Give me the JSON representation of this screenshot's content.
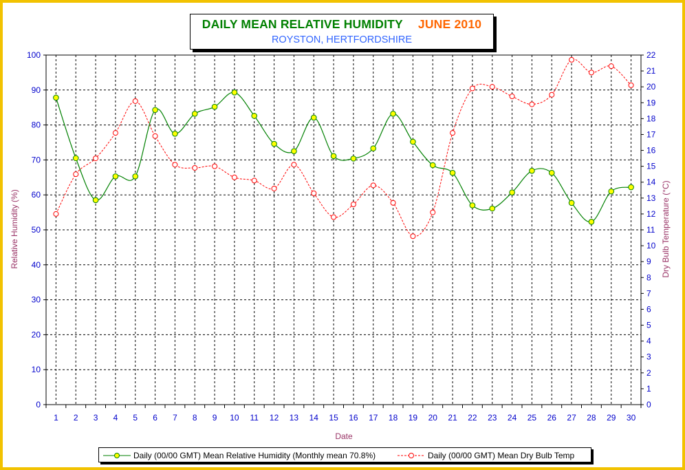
{
  "title": {
    "main": "DAILY MEAN RELATIVE HUMIDITY",
    "period": "JUNE 2010",
    "subtitle": "ROYSTON, HERTFORDSHIRE"
  },
  "colors": {
    "frame": "#f2c200",
    "title_main": "#008000",
    "title_period": "#ff6600",
    "subtitle": "#3366ff",
    "axis_text": "#0000cc",
    "axis_title": "#993366",
    "humidity_line": "#008000",
    "humidity_marker": "#ffff00",
    "temp_line": "#ff0000"
  },
  "chart_data": {
    "type": "line",
    "xlabel": "Date",
    "ylabel": "Relative Humidity (%)",
    "y2label": "Dry Bulb Temperature (°C)",
    "x": [
      1,
      2,
      3,
      4,
      5,
      6,
      7,
      8,
      9,
      10,
      11,
      12,
      13,
      14,
      15,
      16,
      17,
      18,
      19,
      20,
      21,
      22,
      23,
      24,
      25,
      26,
      27,
      28,
      29,
      30
    ],
    "xticks": [
      "1",
      "2",
      "3",
      "4",
      "5",
      "6",
      "7",
      "8",
      "9",
      "10",
      "11",
      "12",
      "13",
      "14",
      "15",
      "16",
      "17",
      "18",
      "19",
      "20",
      "21",
      "22",
      "23",
      "24",
      "25",
      "26",
      "27",
      "28",
      "29",
      "30"
    ],
    "ylim": [
      0,
      100
    ],
    "yticks": [
      "0",
      "10",
      "20",
      "30",
      "40",
      "50",
      "60",
      "70",
      "80",
      "90",
      "100"
    ],
    "y2lim": [
      0,
      22
    ],
    "y2ticks": [
      "0",
      "1",
      "2",
      "3",
      "4",
      "5",
      "6",
      "7",
      "8",
      "9",
      "10",
      "11",
      "12",
      "13",
      "14",
      "15",
      "16",
      "17",
      "18",
      "19",
      "20",
      "21",
      "22"
    ],
    "grid": true,
    "legend_position": "bottom",
    "series": [
      {
        "name": "Daily (00/00 GMT) Mean Relative Humidity (Monthly mean 70.8%)",
        "axis": "left",
        "style": "solid",
        "values": [
          87.8,
          70.5,
          58.5,
          65.3,
          65.3,
          84.3,
          77.5,
          83.2,
          85.2,
          89.3,
          82.6,
          74.6,
          72.5,
          82.1,
          71.1,
          70.4,
          73.3,
          83.2,
          75.2,
          68.5,
          66.3,
          57.0,
          56.1,
          60.7,
          66.9,
          66.3,
          57.7,
          52.3,
          61.0,
          62.2
        ]
      },
      {
        "name": "Daily (00/00 GMT) Mean Dry Bulb Temp",
        "axis": "right",
        "style": "dashed",
        "values": [
          12.0,
          14.5,
          15.5,
          17.1,
          19.1,
          16.9,
          15.1,
          14.9,
          15.0,
          14.3,
          14.1,
          13.6,
          15.1,
          13.3,
          11.8,
          12.6,
          13.8,
          12.7,
          10.6,
          12.1,
          17.1,
          19.9,
          20.0,
          19.4,
          18.9,
          19.5,
          21.7,
          20.9,
          21.3,
          20.1
        ]
      }
    ]
  }
}
